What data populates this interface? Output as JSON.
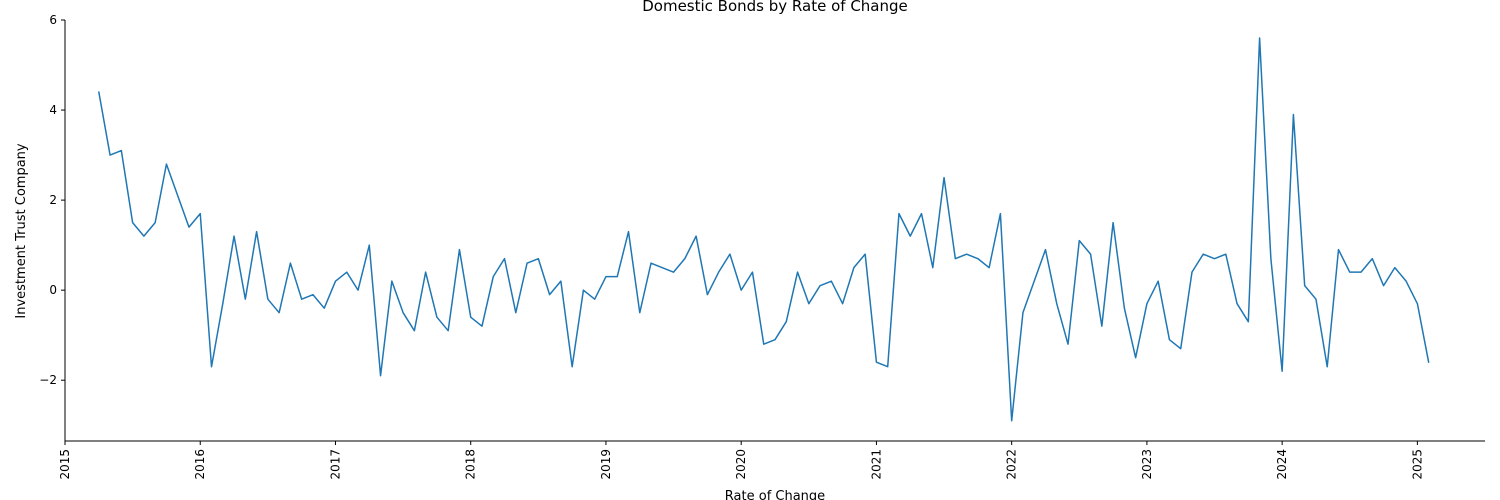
{
  "chart_data": {
    "type": "line",
    "title": "Domestic Bonds by Rate of Change",
    "xlabel": "Rate of Change",
    "ylabel": "Investment Trust Company",
    "xlim": [
      "2015-01-01",
      "2025-07-01"
    ],
    "ylim": [
      -3.35,
      6.0
    ],
    "x_ticks": [
      "2015",
      "2016",
      "2017",
      "2018",
      "2019",
      "2020",
      "2021",
      "2022",
      "2023",
      "2024",
      "2025"
    ],
    "y_ticks": [
      -2,
      0,
      2,
      4,
      6
    ],
    "grid": false,
    "legend": "none",
    "color": "#1f77b4",
    "series": [
      {
        "x": [
          "2015-04",
          "2015-05",
          "2015-06",
          "2015-07",
          "2015-08",
          "2015-09",
          "2015-10",
          "2015-11",
          "2015-12",
          "2016-01",
          "2016-02",
          "2016-03",
          "2016-04",
          "2016-05",
          "2016-06",
          "2016-07",
          "2016-08",
          "2016-09",
          "2016-10",
          "2016-11",
          "2016-12",
          "2017-01",
          "2017-02",
          "2017-03",
          "2017-04",
          "2017-05",
          "2017-06",
          "2017-07",
          "2017-08",
          "2017-09",
          "2017-10",
          "2017-11",
          "2017-12",
          "2018-01",
          "2018-02",
          "2018-03",
          "2018-04",
          "2018-05",
          "2018-06",
          "2018-07",
          "2018-08",
          "2018-09",
          "2018-10",
          "2018-11",
          "2018-12",
          "2019-01",
          "2019-02",
          "2019-03",
          "2019-04",
          "2019-05",
          "2019-06",
          "2019-07",
          "2019-08",
          "2019-09",
          "2019-10",
          "2019-11",
          "2019-12",
          "2020-01",
          "2020-02",
          "2020-03",
          "2020-04",
          "2020-05",
          "2020-06",
          "2020-07",
          "2020-08",
          "2020-09",
          "2020-10",
          "2020-11",
          "2020-12",
          "2021-01",
          "2021-02",
          "2021-03",
          "2021-04",
          "2021-05",
          "2021-06",
          "2021-07",
          "2021-08",
          "2021-09",
          "2021-10",
          "2021-11",
          "2021-12",
          "2022-01",
          "2022-02",
          "2022-03",
          "2022-04",
          "2022-05",
          "2022-06",
          "2022-07",
          "2022-08",
          "2022-09",
          "2022-10",
          "2022-11",
          "2022-12",
          "2023-01",
          "2023-02",
          "2023-03",
          "2023-04",
          "2023-05",
          "2023-06",
          "2023-07",
          "2023-08",
          "2023-09",
          "2023-10",
          "2023-11",
          "2023-12",
          "2024-01",
          "2024-02",
          "2024-03",
          "2024-04",
          "2024-05",
          "2024-06",
          "2024-07",
          "2024-08",
          "2024-09",
          "2024-10",
          "2024-11",
          "2024-12",
          "2025-01",
          "2025-02"
        ],
        "values": [
          4.4,
          3.0,
          3.1,
          1.5,
          1.2,
          1.5,
          2.8,
          2.1,
          1.4,
          1.7,
          -1.7,
          -0.3,
          1.2,
          -0.2,
          1.3,
          -0.2,
          -0.5,
          0.6,
          -0.2,
          -0.1,
          -0.4,
          0.2,
          0.4,
          0.0,
          1.0,
          -1.9,
          0.2,
          -0.5,
          -0.9,
          0.4,
          -0.6,
          -0.9,
          0.9,
          -0.6,
          -0.8,
          0.3,
          0.7,
          -0.5,
          0.6,
          0.7,
          -0.1,
          0.2,
          -1.7,
          0.0,
          -0.2,
          0.3,
          0.3,
          1.3,
          -0.5,
          0.6,
          0.5,
          0.4,
          0.7,
          1.2,
          -0.1,
          0.4,
          0.8,
          0.0,
          0.4,
          -1.2,
          -1.1,
          -0.7,
          0.4,
          -0.3,
          0.1,
          0.2,
          -0.3,
          0.5,
          0.8,
          -1.6,
          -1.7,
          1.7,
          1.2,
          1.7,
          0.5,
          2.5,
          0.7,
          0.8,
          0.7,
          0.5,
          1.7,
          -2.9,
          -0.5,
          0.2,
          0.9,
          -0.3,
          -1.2,
          1.1,
          0.8,
          -0.8,
          1.5,
          -0.4,
          -1.5,
          -0.3,
          0.2,
          -1.1,
          -1.3,
          0.4,
          0.8,
          0.7,
          0.8,
          -0.3,
          -0.7,
          5.6,
          0.7,
          -1.8,
          3.9,
          0.1,
          -0.2,
          -1.7,
          0.9,
          0.4,
          0.4,
          0.7,
          0.1,
          0.5,
          0.2,
          -0.3,
          -1.6
        ]
      }
    ]
  }
}
